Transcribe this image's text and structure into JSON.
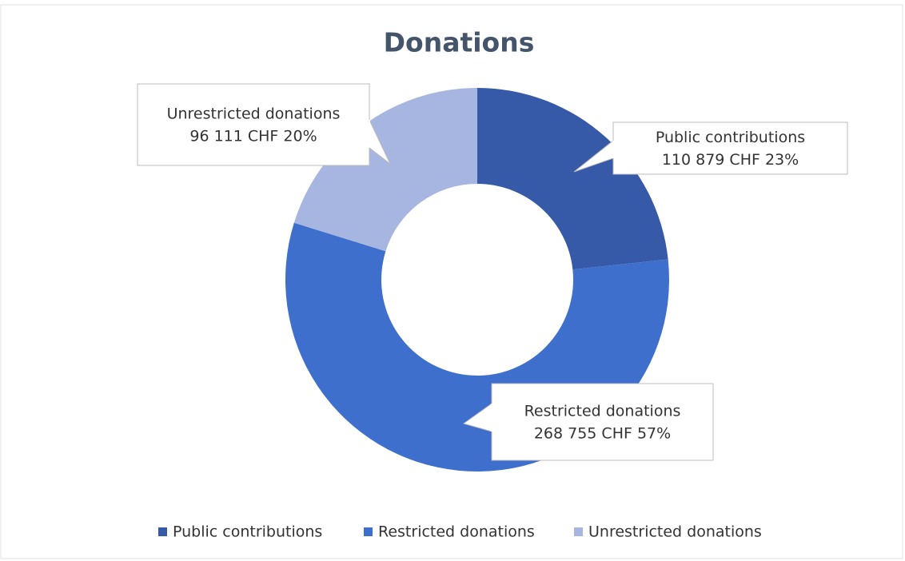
{
  "chart_data": {
    "type": "donut",
    "title": "Donations",
    "categories": [
      "Public contributions",
      "Restricted donations",
      "Unrestricted donations"
    ],
    "values": [
      110879,
      268755,
      96111
    ],
    "value_labels": [
      "110 879  CHF  23%",
      "268 755  CHF  57%",
      "96 111  CHF  20%"
    ],
    "colors": [
      "#3659a8",
      "#3f6fcc",
      "#a7b6e0"
    ],
    "legend": "bottom"
  }
}
